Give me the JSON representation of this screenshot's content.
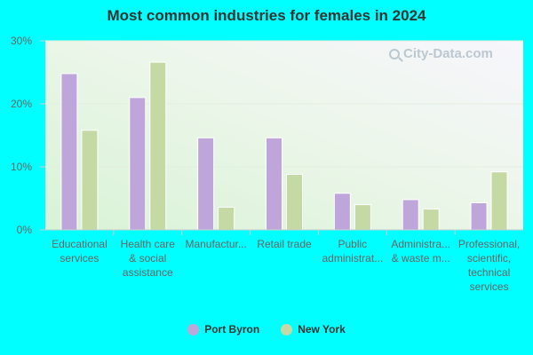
{
  "colors": {
    "background": "#00ffff",
    "series_port_byron": "#bfa6da",
    "series_new_york": "#c5d9a4"
  },
  "watermark": {
    "text": "City-Data.com",
    "icon": "magnifier-icon"
  },
  "chart_data": {
    "type": "bar",
    "title": "Most common industries for females in 2024",
    "xlabel": "",
    "ylabel": "",
    "ylim": [
      0,
      30
    ],
    "yticks": [
      "0%",
      "10%",
      "20%",
      "30%"
    ],
    "grid": true,
    "legend_position": "bottom",
    "categories": [
      [
        "Educational",
        "services"
      ],
      [
        "Health care",
        "& social",
        "assistance"
      ],
      [
        "Manufactur..."
      ],
      [
        "Retail trade"
      ],
      [
        "Public",
        "administrat..."
      ],
      [
        "Administra...",
        "& waste m..."
      ],
      [
        "Professional,",
        "scientific,",
        "technical",
        "services"
      ]
    ],
    "series": [
      {
        "name": "Port Byron",
        "color": "#bfa6da",
        "values": [
          24.8,
          21.0,
          14.6,
          14.6,
          5.8,
          4.8,
          4.3
        ]
      },
      {
        "name": "New York",
        "color": "#c5d9a4",
        "values": [
          15.8,
          26.6,
          3.6,
          8.8,
          4.0,
          3.3,
          9.2
        ]
      }
    ]
  }
}
